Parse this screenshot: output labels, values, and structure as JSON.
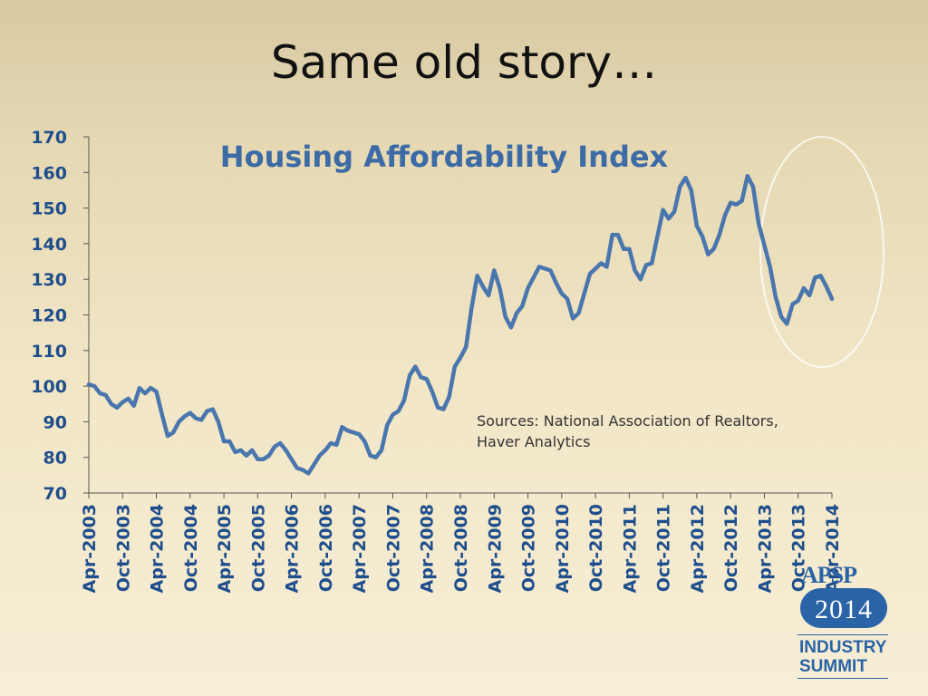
{
  "slide": {
    "title": "Same old story…"
  },
  "logo": {
    "org": "APSP",
    "year": "2014",
    "line1": "INDUSTRY",
    "line2": "SUMMIT"
  },
  "colors": {
    "series": "#4a76ae",
    "axis_text": "#1f4e8c",
    "title": "#3d6ba6",
    "source_text": "#333333",
    "highlight_ellipse": "#ffffff",
    "logo_blue": "#2a63a6"
  },
  "chart_data": {
    "type": "line",
    "title": "Housing Affordability Index",
    "xlabel": "",
    "ylabel": "",
    "ylim": [
      70,
      170
    ],
    "yticks": [
      70,
      80,
      90,
      100,
      110,
      120,
      130,
      140,
      150,
      160,
      170
    ],
    "grid": false,
    "legend": "none",
    "annotation": "Sources: National Association of Realtors,\nHaver Analytics",
    "x_tick_labels": [
      "Apr-2003",
      "Oct-2003",
      "Apr-2004",
      "Oct-2004",
      "Apr-2005",
      "Oct-2005",
      "Apr-2006",
      "Oct-2006",
      "Apr-2007",
      "Oct-2007",
      "Apr-2008",
      "Oct-2008",
      "Apr-2009",
      "Oct-2009",
      "Apr-2010",
      "Oct-2010",
      "Apr-2011",
      "Oct-2011",
      "Apr-2012",
      "Oct-2012",
      "Apr-2013",
      "Oct-2013",
      "Apr-2014"
    ],
    "x_start": "Apr-2003",
    "x_step": "monthly",
    "series": [
      {
        "values": [
          100.5,
          100,
          98,
          97.5,
          95,
          94,
          95.5,
          96.5,
          94.5,
          99.5,
          98,
          99.5,
          98.5,
          92,
          86,
          87,
          90,
          91.5,
          92.5,
          91,
          90.5,
          93,
          93.5,
          90,
          84.5,
          84.5,
          81.5,
          82,
          80.5,
          82,
          79.5,
          79.5,
          80.5,
          83,
          84,
          82,
          79.5,
          77,
          76.5,
          75.5,
          78,
          80.5,
          82,
          84,
          83.5,
          88.5,
          87.5,
          87,
          86.5,
          84.5,
          80.5,
          80,
          82,
          89,
          92,
          93,
          96,
          103,
          105.5,
          102.5,
          102,
          98.5,
          94,
          93.5,
          97,
          105.5,
          108,
          111,
          122,
          131,
          128,
          125.5,
          132.5,
          127.5,
          119.5,
          116.5,
          120.5,
          122.5,
          127.5,
          130.5,
          133.5,
          133,
          132.5,
          129,
          126,
          124.5,
          119,
          120.5,
          126,
          131.5,
          133,
          134.5,
          133.5,
          142.5,
          142.5,
          138.5,
          138.5,
          132.5,
          130,
          134,
          134.5,
          142,
          149.5,
          147,
          149,
          156,
          158.5,
          155,
          145,
          142,
          137,
          138.5,
          142.5,
          148,
          151.5,
          151,
          152,
          159,
          156,
          145.5,
          139.5,
          133.5,
          125,
          119.5,
          117.5,
          123,
          124,
          127.5,
          125.5,
          130.5,
          131,
          128,
          124.5
        ]
      }
    ]
  }
}
